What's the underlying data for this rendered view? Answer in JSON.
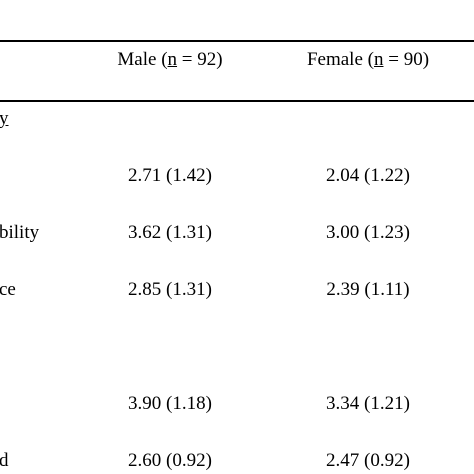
{
  "table": {
    "columns": [
      {
        "prefix": "Male (",
        "n": "n",
        "suffix": " = 92)"
      },
      {
        "prefix": "Female (",
        "n": "n",
        "suffix": " = 90)"
      }
    ],
    "section": "y",
    "rows": [
      {
        "cells": [
          "2.71 (1.42)",
          "2.04 (1.22)"
        ]
      },
      {
        "label": "bility",
        "cells": [
          "3.62 (1.31)",
          "3.00 (1.23)"
        ]
      },
      {
        "label": "ce",
        "cells": [
          "2.85 (1.31)",
          "2.39 (1.11)"
        ]
      },
      {
        "cells": [
          "3.90 (1.18)",
          "3.34 (1.21)"
        ]
      },
      {
        "label": "d",
        "cells": [
          "2.60 (0.92)",
          "2.47 (0.92)"
        ]
      }
    ]
  }
}
